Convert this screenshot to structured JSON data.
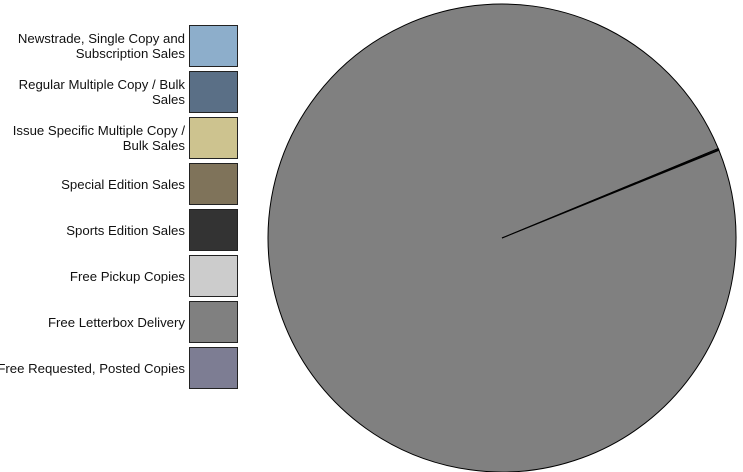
{
  "chart_data": {
    "type": "pie",
    "legend_position": "left",
    "slices": [
      {
        "label": "Newstrade, Single Copy and Subscription Sales",
        "value": 0.08,
        "color": "#8daecb"
      },
      {
        "label": "Regular Multiple Copy / Bulk Sales",
        "value": 0.05,
        "color": "#5a6f86"
      },
      {
        "label": "Issue Specific Multiple Copy / Bulk Sales",
        "value": 0.0,
        "color": "#cdc38f"
      },
      {
        "label": "Special Edition Sales",
        "value": 0.0,
        "color": "#7f735a"
      },
      {
        "label": "Sports Edition Sales",
        "value": 0.0,
        "color": "#333333"
      },
      {
        "label": "Free Pickup Copies",
        "value": 0.0,
        "color": "#cccccc"
      },
      {
        "label": "Free Letterbox Delivery",
        "value": 99.87,
        "color": "#808080"
      },
      {
        "label": "Free Requested, Posted Copies",
        "value": 0.0,
        "color": "#7d7d93"
      }
    ]
  }
}
